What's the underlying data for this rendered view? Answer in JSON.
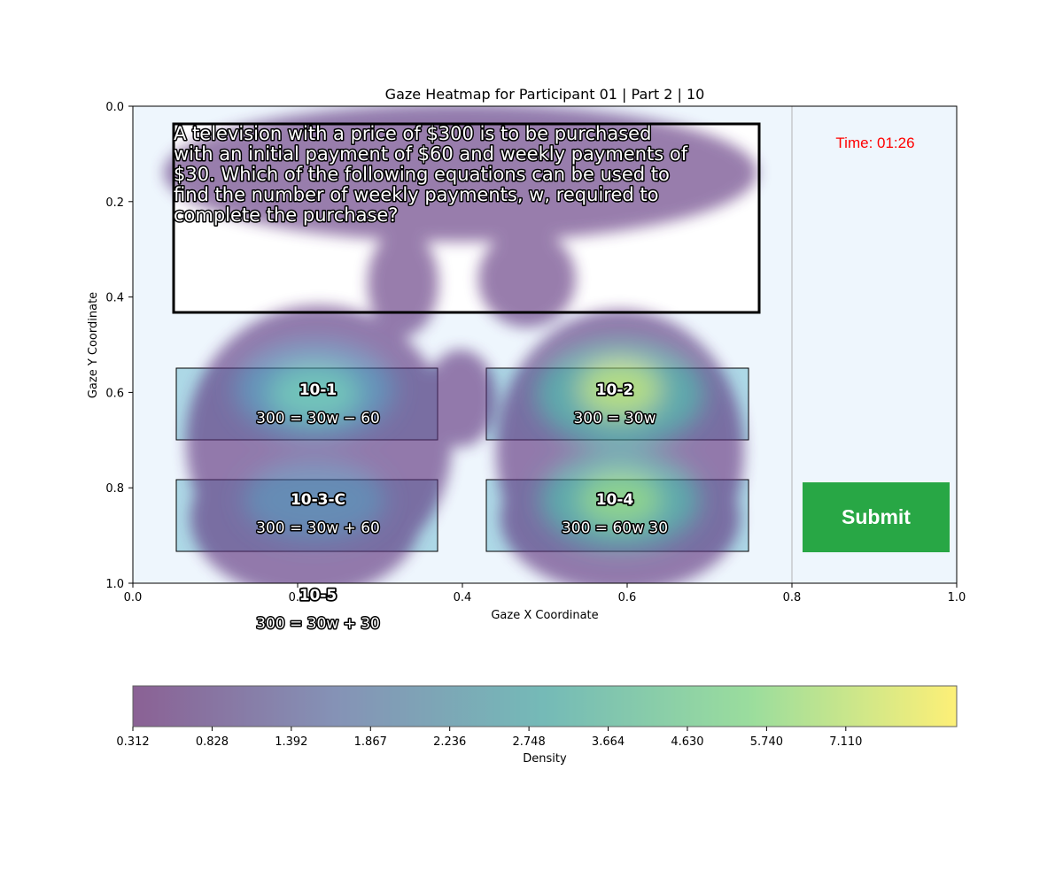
{
  "chart_data": {
    "type": "heatmap",
    "title": "Gaze Heatmap for Participant 01 | Part 2 | 10",
    "xlabel": "Gaze X Coordinate",
    "ylabel": "Gaze Y Coordinate",
    "xlim": [
      0.0,
      1.0
    ],
    "ylim": [
      1.0,
      0.0
    ],
    "y_axis_inverted": true,
    "grid": false,
    "x_ticks": [
      "0.0",
      "0.2",
      "0.4",
      "0.6",
      "0.8",
      "1.0"
    ],
    "y_ticks": [
      "0.0",
      "0.2",
      "0.4",
      "0.6",
      "0.8",
      "1.0"
    ],
    "colormap": "viridis",
    "colorbar": {
      "label": "Density",
      "orientation": "horizontal",
      "tick_labels": [
        "0.312",
        "0.828",
        "1.392",
        "1.867",
        "2.236",
        "2.748",
        "3.664",
        "4.630",
        "5.740",
        "7.110"
      ]
    },
    "density_hotspots": [
      {
        "x": 0.22,
        "y": 0.6,
        "peak_density": 4.8
      },
      {
        "x": 0.59,
        "y": 0.61,
        "peak_density": 8.5
      },
      {
        "x": 0.22,
        "y": 0.84,
        "peak_density": 4.2
      },
      {
        "x": 0.59,
        "y": 0.84,
        "peak_density": 6.9
      },
      {
        "x": 0.4,
        "y": 0.15,
        "peak_density": 1.0
      },
      {
        "x": 0.46,
        "y": 0.3,
        "peak_density": 0.6
      }
    ]
  },
  "question": {
    "text_lines": [
      "A television with a price of $300 is to be purchased",
      "with an initial payment of $60 and weekly payments of",
      "$30. Which of the following equations can be used to",
      "find the number of weekly payments, w, required to",
      "complete the purchase?"
    ]
  },
  "options": [
    {
      "id": "10-1",
      "equation": "300 = 30w − 60"
    },
    {
      "id": "10-2",
      "equation": "300 = 30w"
    },
    {
      "id": "10-3-C",
      "equation": "300 = 30w + 60"
    },
    {
      "id": "10-4",
      "equation": "300 = 60w 30"
    },
    {
      "id": "10-5",
      "equation": "300 = 30w + 30"
    }
  ],
  "timer": {
    "text": "Time: 01:26"
  },
  "submit": {
    "label": "Submit"
  },
  "colors": {
    "background": "#eef6fd",
    "option_fill": "#add8e6",
    "submit_fill": "#28a745",
    "timer_text": "#ff0000"
  }
}
